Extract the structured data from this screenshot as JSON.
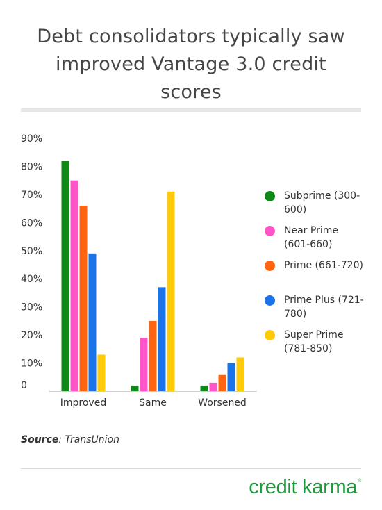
{
  "title_lines": [
    "Debt consolidators typically saw",
    "improved Vantage 3.0 credit",
    "scores"
  ],
  "source": {
    "label": "Source",
    "text": ": TransUnion"
  },
  "brand": {
    "name": "credit karma",
    "mark": "®"
  },
  "chart_data": {
    "type": "bar",
    "title": "Debt consolidators typically saw improved Vantage 3.0 credit scores",
    "categories": [
      "Improved",
      "Same",
      "Worsened"
    ],
    "y_ticks": [
      "0",
      "10%",
      "20%",
      "30%",
      "40%",
      "50%",
      "60%",
      "70%",
      "80%",
      "90%"
    ],
    "ylim": [
      0,
      90
    ],
    "legend_position": "right",
    "series": [
      {
        "name": "Subprime (300-600)",
        "color": "#0f8a17",
        "values": [
          82,
          2,
          2
        ]
      },
      {
        "name": "Near Prime (601-660)",
        "color": "#ff55c8",
        "values": [
          75,
          19,
          3
        ]
      },
      {
        "name": "Prime (661-720)",
        "color": "#ff6411",
        "values": [
          66,
          25,
          6
        ]
      },
      {
        "name": "Prime Plus (721-780)",
        "color": "#1a73e8",
        "values": [
          49,
          37,
          10
        ]
      },
      {
        "name": "Super Prime (781-850)",
        "color": "#ffca0a",
        "values": [
          13,
          71,
          12
        ]
      }
    ]
  }
}
